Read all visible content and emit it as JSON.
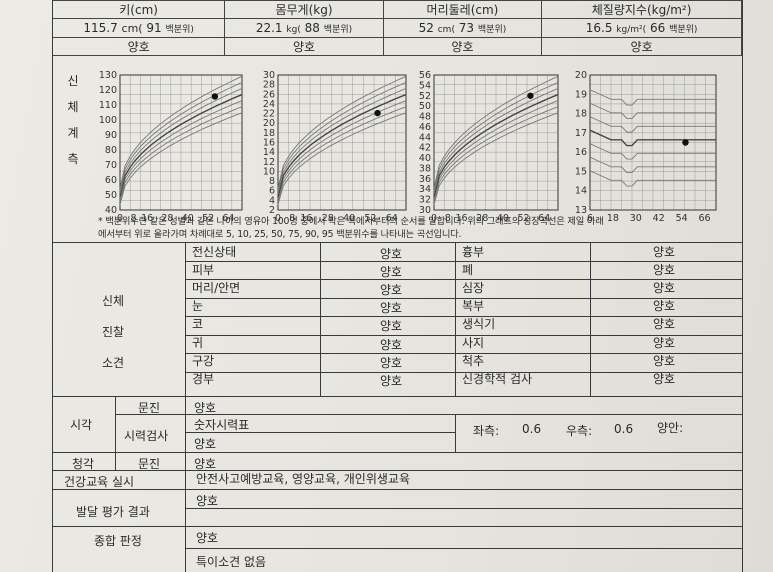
{
  "growth": {
    "columns": [
      {
        "title": "키(cm)",
        "value": "115.7",
        "unit": "cm(",
        "pct": "91",
        "pct_label": "백분위)",
        "status": "양호"
      },
      {
        "title": "몸무게(kg)",
        "value": "22.1",
        "unit": "kg(",
        "pct": "88",
        "pct_label": "백분위)",
        "status": "양호"
      },
      {
        "title": "머리둘레(cm)",
        "value": "52",
        "unit": "cm(",
        "pct": "73",
        "pct_label": "백분위)",
        "status": "양호"
      },
      {
        "title": "체질량지수(kg/m²)",
        "value": "16.5",
        "unit": "kg/m²(",
        "pct": "66",
        "pct_label": "백분위)",
        "status": "양호"
      }
    ],
    "side_label": [
      "신",
      "체",
      "계",
      "측"
    ],
    "note_line1": "* 백분위수란 같은 성별과 같은 나이의 영유아 100명 중에서 작은 쪽에서부터의 순서를 말합니다. 위의 그래프의 성장곡선은 제일 아래",
    "note_line2": "에서부터 위로 올라가며 차례대로 5, 10, 25, 50, 75, 90, 95 백분위수를 나타내는 곡선입니다."
  },
  "chart_data": [
    {
      "type": "line",
      "y_ticks": [
        "130",
        "120",
        "110",
        "100",
        "90",
        "80",
        "70",
        "60",
        "50",
        "40"
      ],
      "x_ticks": [
        "0",
        "8",
        "16",
        "28",
        "40",
        "52",
        "64"
      ],
      "ylim": [
        40,
        130
      ],
      "xlim": [
        0,
        72
      ],
      "point": {
        "x": 56,
        "y": 115.7
      }
    },
    {
      "type": "line",
      "y_ticks": [
        "30",
        "28",
        "26",
        "24",
        "22",
        "20",
        "18",
        "16",
        "14",
        "12",
        "10",
        "8",
        "6",
        "4",
        "2"
      ],
      "x_ticks": [
        "0",
        "8",
        "16",
        "28",
        "40",
        "52",
        "64"
      ],
      "ylim": [
        2,
        30
      ],
      "xlim": [
        0,
        72
      ],
      "point": {
        "x": 56,
        "y": 22.1
      }
    },
    {
      "type": "line",
      "y_ticks": [
        "56",
        "54",
        "52",
        "50",
        "48",
        "46",
        "44",
        "42",
        "40",
        "38",
        "36",
        "34",
        "32",
        "30"
      ],
      "x_ticks": [
        "0",
        "8",
        "16",
        "28",
        "40",
        "52",
        "64"
      ],
      "ylim": [
        30,
        56
      ],
      "xlim": [
        0,
        72
      ],
      "point": {
        "x": 56,
        "y": 52
      }
    },
    {
      "type": "line",
      "y_ticks": [
        "20",
        "19",
        "18",
        "17",
        "16",
        "15",
        "14",
        "13"
      ],
      "x_ticks": [
        "6",
        "18",
        "30",
        "42",
        "54",
        "66"
      ],
      "ylim": [
        13,
        20
      ],
      "xlim": [
        6,
        72
      ],
      "point": {
        "x": 56,
        "y": 16.5
      }
    }
  ],
  "exam": {
    "side_label": [
      "신체",
      "진찰",
      "소견"
    ],
    "left": [
      {
        "item": "전신상태",
        "result": "양호"
      },
      {
        "item": "피부",
        "result": "양호"
      },
      {
        "item": "머리/안면",
        "result": "양호"
      },
      {
        "item": "눈",
        "result": "양호"
      },
      {
        "item": "코",
        "result": "양호"
      },
      {
        "item": "귀",
        "result": "양호"
      },
      {
        "item": "구강",
        "result": "양호"
      },
      {
        "item": "경부",
        "result": "양호"
      }
    ],
    "right": [
      {
        "item": "흉부",
        "result": "양호"
      },
      {
        "item": "폐",
        "result": "양호"
      },
      {
        "item": "심장",
        "result": "양호"
      },
      {
        "item": "복부",
        "result": "양호"
      },
      {
        "item": "생식기",
        "result": "양호"
      },
      {
        "item": "사지",
        "result": "양호"
      },
      {
        "item": "척추",
        "result": "양호"
      },
      {
        "item": "신경학적 검사",
        "result": "양호"
      }
    ]
  },
  "vision": {
    "label": "시각",
    "interview_label": "문진",
    "interview_value": "양호",
    "test_label": "시력검사",
    "test_type": "숫자시력표",
    "left_label": "좌측:",
    "left_value": "0.6",
    "right_label": "우측:",
    "right_value": "0.6",
    "both_label": "양안:",
    "test_result": "양호"
  },
  "hearing": {
    "label": "청각",
    "interview_label": "문진",
    "value": "양호"
  },
  "education": {
    "label": "건강교육 실시",
    "value": "안전사고예방교육, 영양교육, 개인위생교육"
  },
  "development": {
    "label": "발달 평가 결과",
    "value": "양호"
  },
  "overall": {
    "label": "종합 판정",
    "value": "양호",
    "note": "특이소견 없음"
  }
}
